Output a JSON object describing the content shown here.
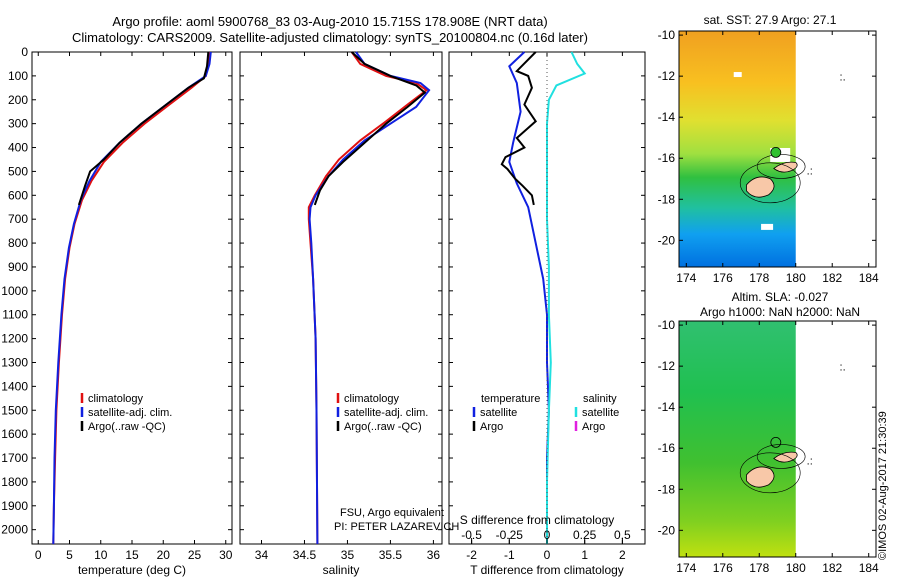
{
  "header": {
    "line1": "Argo profile: aoml 5900768_83 03-Aug-2010 15.715S 178.908E (NRT data)",
    "line2": "Climatology: CARS2009. Satellite-adjusted climatology: synTS_20100804.nc (0.16d later)"
  },
  "colors": {
    "climatology": "#e01010",
    "satellite": "#1020e0",
    "argo": "#000000",
    "sat_salinity": "#20e0e0",
    "argo_salinity": "#e020e0",
    "land": "#f8c8a8"
  },
  "annotations": {
    "fsu": "FSU, Argo equivalent",
    "pi": "PI: PETER LAZAREVICH",
    "credit": "©IMOS 02-Aug-2017 21:30:39"
  },
  "chart_data": [
    {
      "type": "line",
      "panel": "temperature",
      "xlabel": "temperature (deg C)",
      "xlim": [
        -1,
        31
      ],
      "xticks": [
        0,
        5,
        10,
        15,
        20,
        25,
        30
      ],
      "ylim": [
        2060,
        0
      ],
      "yticks": [
        0,
        100,
        200,
        300,
        400,
        500,
        600,
        700,
        800,
        900,
        1000,
        1100,
        1200,
        1300,
        1400,
        1500,
        1600,
        1700,
        1800,
        1900,
        2000
      ],
      "legend": [
        "climatology",
        "satellite-adj. clim.",
        "Argo(..raw -QC)"
      ],
      "series": [
        {
          "name": "climatology",
          "color_key": "climatology",
          "points": [
            [
              27.3,
              0
            ],
            [
              27.2,
              50
            ],
            [
              26.8,
              100
            ],
            [
              24.5,
              150
            ],
            [
              21,
              220
            ],
            [
              17,
              300
            ],
            [
              13.5,
              380
            ],
            [
              10.5,
              460
            ],
            [
              8.5,
              540
            ],
            [
              7,
              620
            ],
            [
              5.8,
              720
            ],
            [
              5,
              820
            ],
            [
              4.3,
              950
            ],
            [
              3.8,
              1100
            ],
            [
              3.3,
              1300
            ],
            [
              2.9,
              1500
            ],
            [
              2.7,
              1700
            ],
            [
              2.5,
              1900
            ],
            [
              2.4,
              2060
            ]
          ]
        },
        {
          "name": "satellite-adj. clim.",
          "color_key": "satellite",
          "points": [
            [
              27.6,
              0
            ],
            [
              27.4,
              50
            ],
            [
              26.8,
              100
            ],
            [
              24,
              150
            ],
            [
              20.5,
              220
            ],
            [
              16.5,
              300
            ],
            [
              13,
              380
            ],
            [
              10,
              460
            ],
            [
              8.2,
              540
            ],
            [
              6.8,
              620
            ],
            [
              5.7,
              720
            ],
            [
              4.9,
              820
            ],
            [
              4.2,
              950
            ],
            [
              3.7,
              1100
            ],
            [
              3.2,
              1300
            ],
            [
              2.8,
              1500
            ],
            [
              2.6,
              1700
            ],
            [
              2.5,
              1900
            ],
            [
              2.4,
              2060
            ]
          ]
        },
        {
          "name": "Argo(..raw -QC)",
          "color_key": "argo",
          "points": [
            [
              27.2,
              0
            ],
            [
              27,
              60
            ],
            [
              26.5,
              110
            ],
            [
              24,
              150
            ],
            [
              20.5,
              220
            ],
            [
              16.5,
              300
            ],
            [
              13,
              380
            ],
            [
              10.5,
              450
            ],
            [
              8.3,
              500
            ],
            [
              7.5,
              560
            ],
            [
              6.5,
              640
            ]
          ]
        }
      ]
    },
    {
      "type": "line",
      "panel": "salinity",
      "xlabel": "salinity",
      "xlim": [
        33.75,
        36.1
      ],
      "xticks": [
        34,
        34.5,
        35,
        35.5,
        36
      ],
      "xticklabels": [
        "34",
        "34.5",
        "35",
        "35.5",
        "36"
      ],
      "ylim": [
        2060,
        0
      ],
      "legend": [
        "climatology",
        "satellite-adj. clim.",
        "Argo(..raw -QC)"
      ],
      "series": [
        {
          "name": "climatology",
          "color_key": "climatology",
          "points": [
            [
              35.05,
              0
            ],
            [
              35.15,
              50
            ],
            [
              35.45,
              100
            ],
            [
              35.8,
              130
            ],
            [
              35.92,
              160
            ],
            [
              35.7,
              220
            ],
            [
              35.45,
              290
            ],
            [
              35.15,
              370
            ],
            [
              34.9,
              450
            ],
            [
              34.75,
              520
            ],
            [
              34.62,
              600
            ],
            [
              34.55,
              650
            ],
            [
              34.55,
              700
            ],
            [
              34.57,
              800
            ],
            [
              34.6,
              950
            ],
            [
              34.63,
              1200
            ],
            [
              34.64,
              1500
            ],
            [
              34.65,
              2060
            ]
          ]
        },
        {
          "name": "satellite-adj. clim.",
          "color_key": "satellite",
          "points": [
            [
              35.1,
              0
            ],
            [
              35.2,
              50
            ],
            [
              35.5,
              100
            ],
            [
              35.85,
              130
            ],
            [
              35.95,
              160
            ],
            [
              35.8,
              230
            ],
            [
              35.5,
              300
            ],
            [
              35.2,
              370
            ],
            [
              34.95,
              450
            ],
            [
              34.78,
              520
            ],
            [
              34.63,
              600
            ],
            [
              34.57,
              650
            ],
            [
              34.56,
              700
            ],
            [
              34.58,
              800
            ],
            [
              34.6,
              950
            ],
            [
              34.63,
              1200
            ],
            [
              34.64,
              1500
            ],
            [
              34.65,
              2060
            ]
          ]
        },
        {
          "name": "Argo(..raw -QC)",
          "color_key": "argo",
          "points": [
            [
              35.05,
              0
            ],
            [
              35.2,
              50
            ],
            [
              35.5,
              100
            ],
            [
              35.8,
              140
            ],
            [
              35.9,
              170
            ],
            [
              35.7,
              230
            ],
            [
              35.45,
              300
            ],
            [
              35.2,
              380
            ],
            [
              34.95,
              460
            ],
            [
              34.78,
              520
            ],
            [
              34.68,
              580
            ],
            [
              34.62,
              640
            ]
          ]
        }
      ]
    },
    {
      "type": "line",
      "panel": "difference",
      "xlabel": "T difference from climatology",
      "xlabel_top": "S difference from climatology",
      "xlim": [
        -2.6,
        2.6
      ],
      "xticks": [
        -2,
        -1,
        0,
        1,
        2
      ],
      "top_ticks": [
        -0.5,
        -0.25,
        0,
        0.25,
        0.5
      ],
      "top_ticklabels": [
        "-0.5",
        "-0.25",
        "0",
        "0.25",
        "0.5"
      ],
      "legend_left_title": "temperature",
      "legend_left": [
        "satellite",
        "Argo"
      ],
      "legend_right_title": "salinity",
      "legend_right": [
        "satellite",
        "Argo"
      ],
      "series": [
        {
          "name": "satellite",
          "color_key": "satellite",
          "points": [
            [
              -0.6,
              0
            ],
            [
              -1,
              60
            ],
            [
              -0.8,
              130
            ],
            [
              -0.7,
              250
            ],
            [
              -0.9,
              380
            ],
            [
              -1,
              460
            ],
            [
              -0.8,
              550
            ],
            [
              -0.5,
              650
            ],
            [
              -0.3,
              800
            ],
            [
              -0.1,
              950
            ],
            [
              0,
              1100
            ],
            [
              0,
              1300
            ],
            [
              0.05,
              1500
            ],
            [
              0,
              1700
            ],
            [
              0,
              1900
            ],
            [
              0,
              2060
            ]
          ]
        },
        {
          "name": "Argo",
          "color_key": "argo",
          "points": [
            [
              -0.3,
              0
            ],
            [
              -0.8,
              80
            ],
            [
              -0.5,
              100
            ],
            [
              -0.4,
              150
            ],
            [
              -0.6,
              220
            ],
            [
              -0.3,
              290
            ],
            [
              -0.8,
              360
            ],
            [
              -0.6,
              400
            ],
            [
              -1.1,
              440
            ],
            [
              -1.2,
              470
            ],
            [
              -1.05,
              490
            ],
            [
              -0.85,
              530
            ],
            [
              -0.65,
              560
            ],
            [
              -0.4,
              600
            ],
            [
              -0.35,
              640
            ]
          ]
        },
        {
          "name": "satellite",
          "color_key": "sat_salinity",
          "points": [
            [
              0.65,
              0
            ],
            [
              0.8,
              50
            ],
            [
              1.0,
              90
            ],
            [
              0.25,
              140
            ],
            [
              0.05,
              200
            ],
            [
              0,
              300
            ],
            [
              0,
              500
            ],
            [
              0,
              700
            ],
            [
              0.05,
              900
            ],
            [
              0.05,
              1100
            ],
            [
              0.1,
              1300
            ],
            [
              0.05,
              1500
            ],
            [
              0,
              1800
            ],
            [
              0,
              2060
            ]
          ]
        }
      ]
    },
    {
      "type": "heatmap",
      "panel": "sst_map",
      "title": "sat. SST: 27.9 Argo: 27.1",
      "xticks": [
        174,
        176,
        178,
        180,
        182,
        184
      ],
      "yticks": [
        -10,
        -12,
        -14,
        -16,
        -18,
        -20
      ],
      "xlim": [
        173.6,
        184.4
      ],
      "ylim": [
        -21.3,
        -9.8
      ],
      "argo_position": [
        178.908,
        -15.715
      ]
    },
    {
      "type": "heatmap",
      "panel": "sla_map",
      "title": "Altim. SLA: -0.027",
      "subtitle": "Argo h1000: NaN h2000: NaN",
      "xticks": [
        174,
        176,
        178,
        180,
        182,
        184
      ],
      "yticks": [
        -10,
        -12,
        -14,
        -16,
        -18,
        -20
      ],
      "xlim": [
        173.6,
        184.4
      ],
      "ylim": [
        -21.3,
        -9.8
      ],
      "argo_position": [
        178.908,
        -15.715
      ]
    }
  ]
}
